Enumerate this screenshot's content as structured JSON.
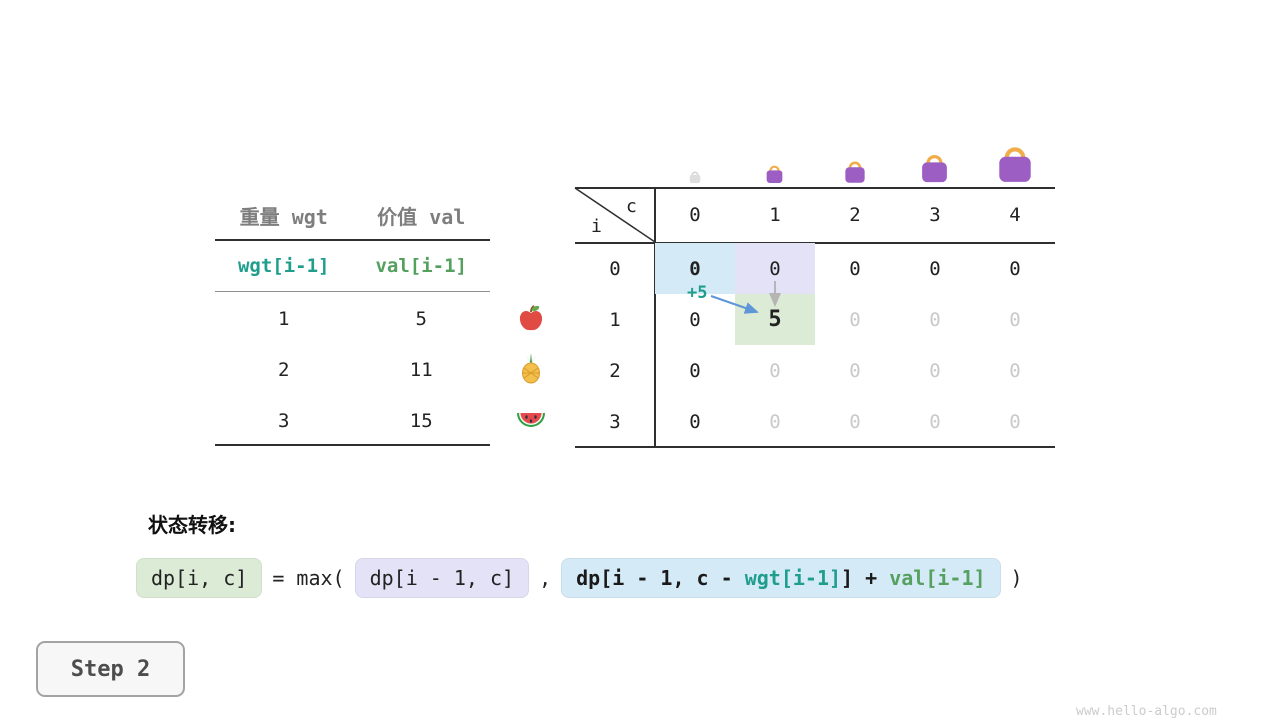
{
  "colors": {
    "green_bg": "#dcebd5",
    "lavender_bg": "#e3e2f6",
    "blue_bg": "#d4eaf7",
    "teal_text": "#1f9e8e",
    "green_text": "#55a05f",
    "arrow_blue": "#5e96d8",
    "arrow_gray": "#b5b5b5",
    "faded_text": "#c9c9c9",
    "header_gray": "#7e7e7e"
  },
  "items_table": {
    "col_headers": [
      "重量 wgt",
      "价值 val"
    ],
    "var_row": [
      "wgt[i-1]",
      "val[i-1]"
    ],
    "rows": [
      {
        "wgt": "1",
        "val": "5",
        "fruit": "apple"
      },
      {
        "wgt": "2",
        "val": "11",
        "fruit": "pineapple"
      },
      {
        "wgt": "3",
        "val": "15",
        "fruit": "watermelon"
      }
    ]
  },
  "dp_table": {
    "corner_row_label": "i",
    "corner_col_label": "c",
    "col_headers": [
      "0",
      "1",
      "2",
      "3",
      "4"
    ],
    "annotation": "+5",
    "rows": [
      {
        "label": "0",
        "cells": [
          {
            "text": "0",
            "hl": "blue",
            "bold": true
          },
          {
            "text": "0",
            "hl": "lavender"
          },
          {
            "text": "0"
          },
          {
            "text": "0"
          },
          {
            "text": "0"
          }
        ]
      },
      {
        "label": "1",
        "cells": [
          {
            "text": "0"
          },
          {
            "text": "5",
            "hl": "green",
            "bold": true
          },
          {
            "text": "0",
            "faded": true
          },
          {
            "text": "0",
            "faded": true
          },
          {
            "text": "0",
            "faded": true
          }
        ]
      },
      {
        "label": "2",
        "cells": [
          {
            "text": "0"
          },
          {
            "text": "0",
            "faded": true
          },
          {
            "text": "0",
            "faded": true
          },
          {
            "text": "0",
            "faded": true
          },
          {
            "text": "0",
            "faded": true
          }
        ]
      },
      {
        "label": "3",
        "cells": [
          {
            "text": "0"
          },
          {
            "text": "0",
            "faded": true
          },
          {
            "text": "0",
            "faded": true
          },
          {
            "text": "0",
            "faded": true
          },
          {
            "text": "0",
            "faded": true
          }
        ]
      }
    ]
  },
  "icons": {
    "fruits": [
      "apple-icon",
      "pineapple-icon",
      "watermelon-icon"
    ],
    "bags": [
      "bag-icon-capacity-0",
      "bag-icon-capacity-1",
      "bag-icon-capacity-2",
      "bag-icon-capacity-3",
      "bag-icon-capacity-4"
    ]
  },
  "formula": {
    "label": "状态转移:",
    "lhs": "dp[i, c]",
    "eq_max": "= max(",
    "option_skip": "dp[i - 1, c]",
    "comma": ",",
    "take_part1": "dp[i - 1, c - ",
    "take_wgt": "wgt[i-1]",
    "take_part2": "] + ",
    "take_val": "val[i-1]",
    "close": ")"
  },
  "step_label": "Step 2",
  "watermark": "www.hello-algo.com"
}
